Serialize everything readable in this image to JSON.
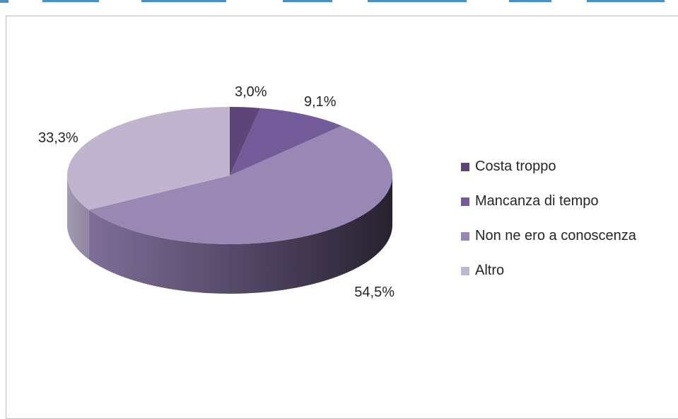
{
  "header_text": "",
  "chart_data": {
    "type": "pie",
    "title": "",
    "categories": [
      "Costa troppo",
      "Mancanza di tempo",
      "Non ne ero a conoscenza",
      "Altro"
    ],
    "values": [
      3.0,
      9.1,
      54.5,
      33.3
    ],
    "labels": [
      "3,0%",
      "9,1%",
      "54,5%",
      "33,3%"
    ],
    "colors": [
      "#5e4578",
      "#735a99",
      "#9987b4",
      "#c0b4cf"
    ],
    "legend_position": "right",
    "style": "3d"
  }
}
